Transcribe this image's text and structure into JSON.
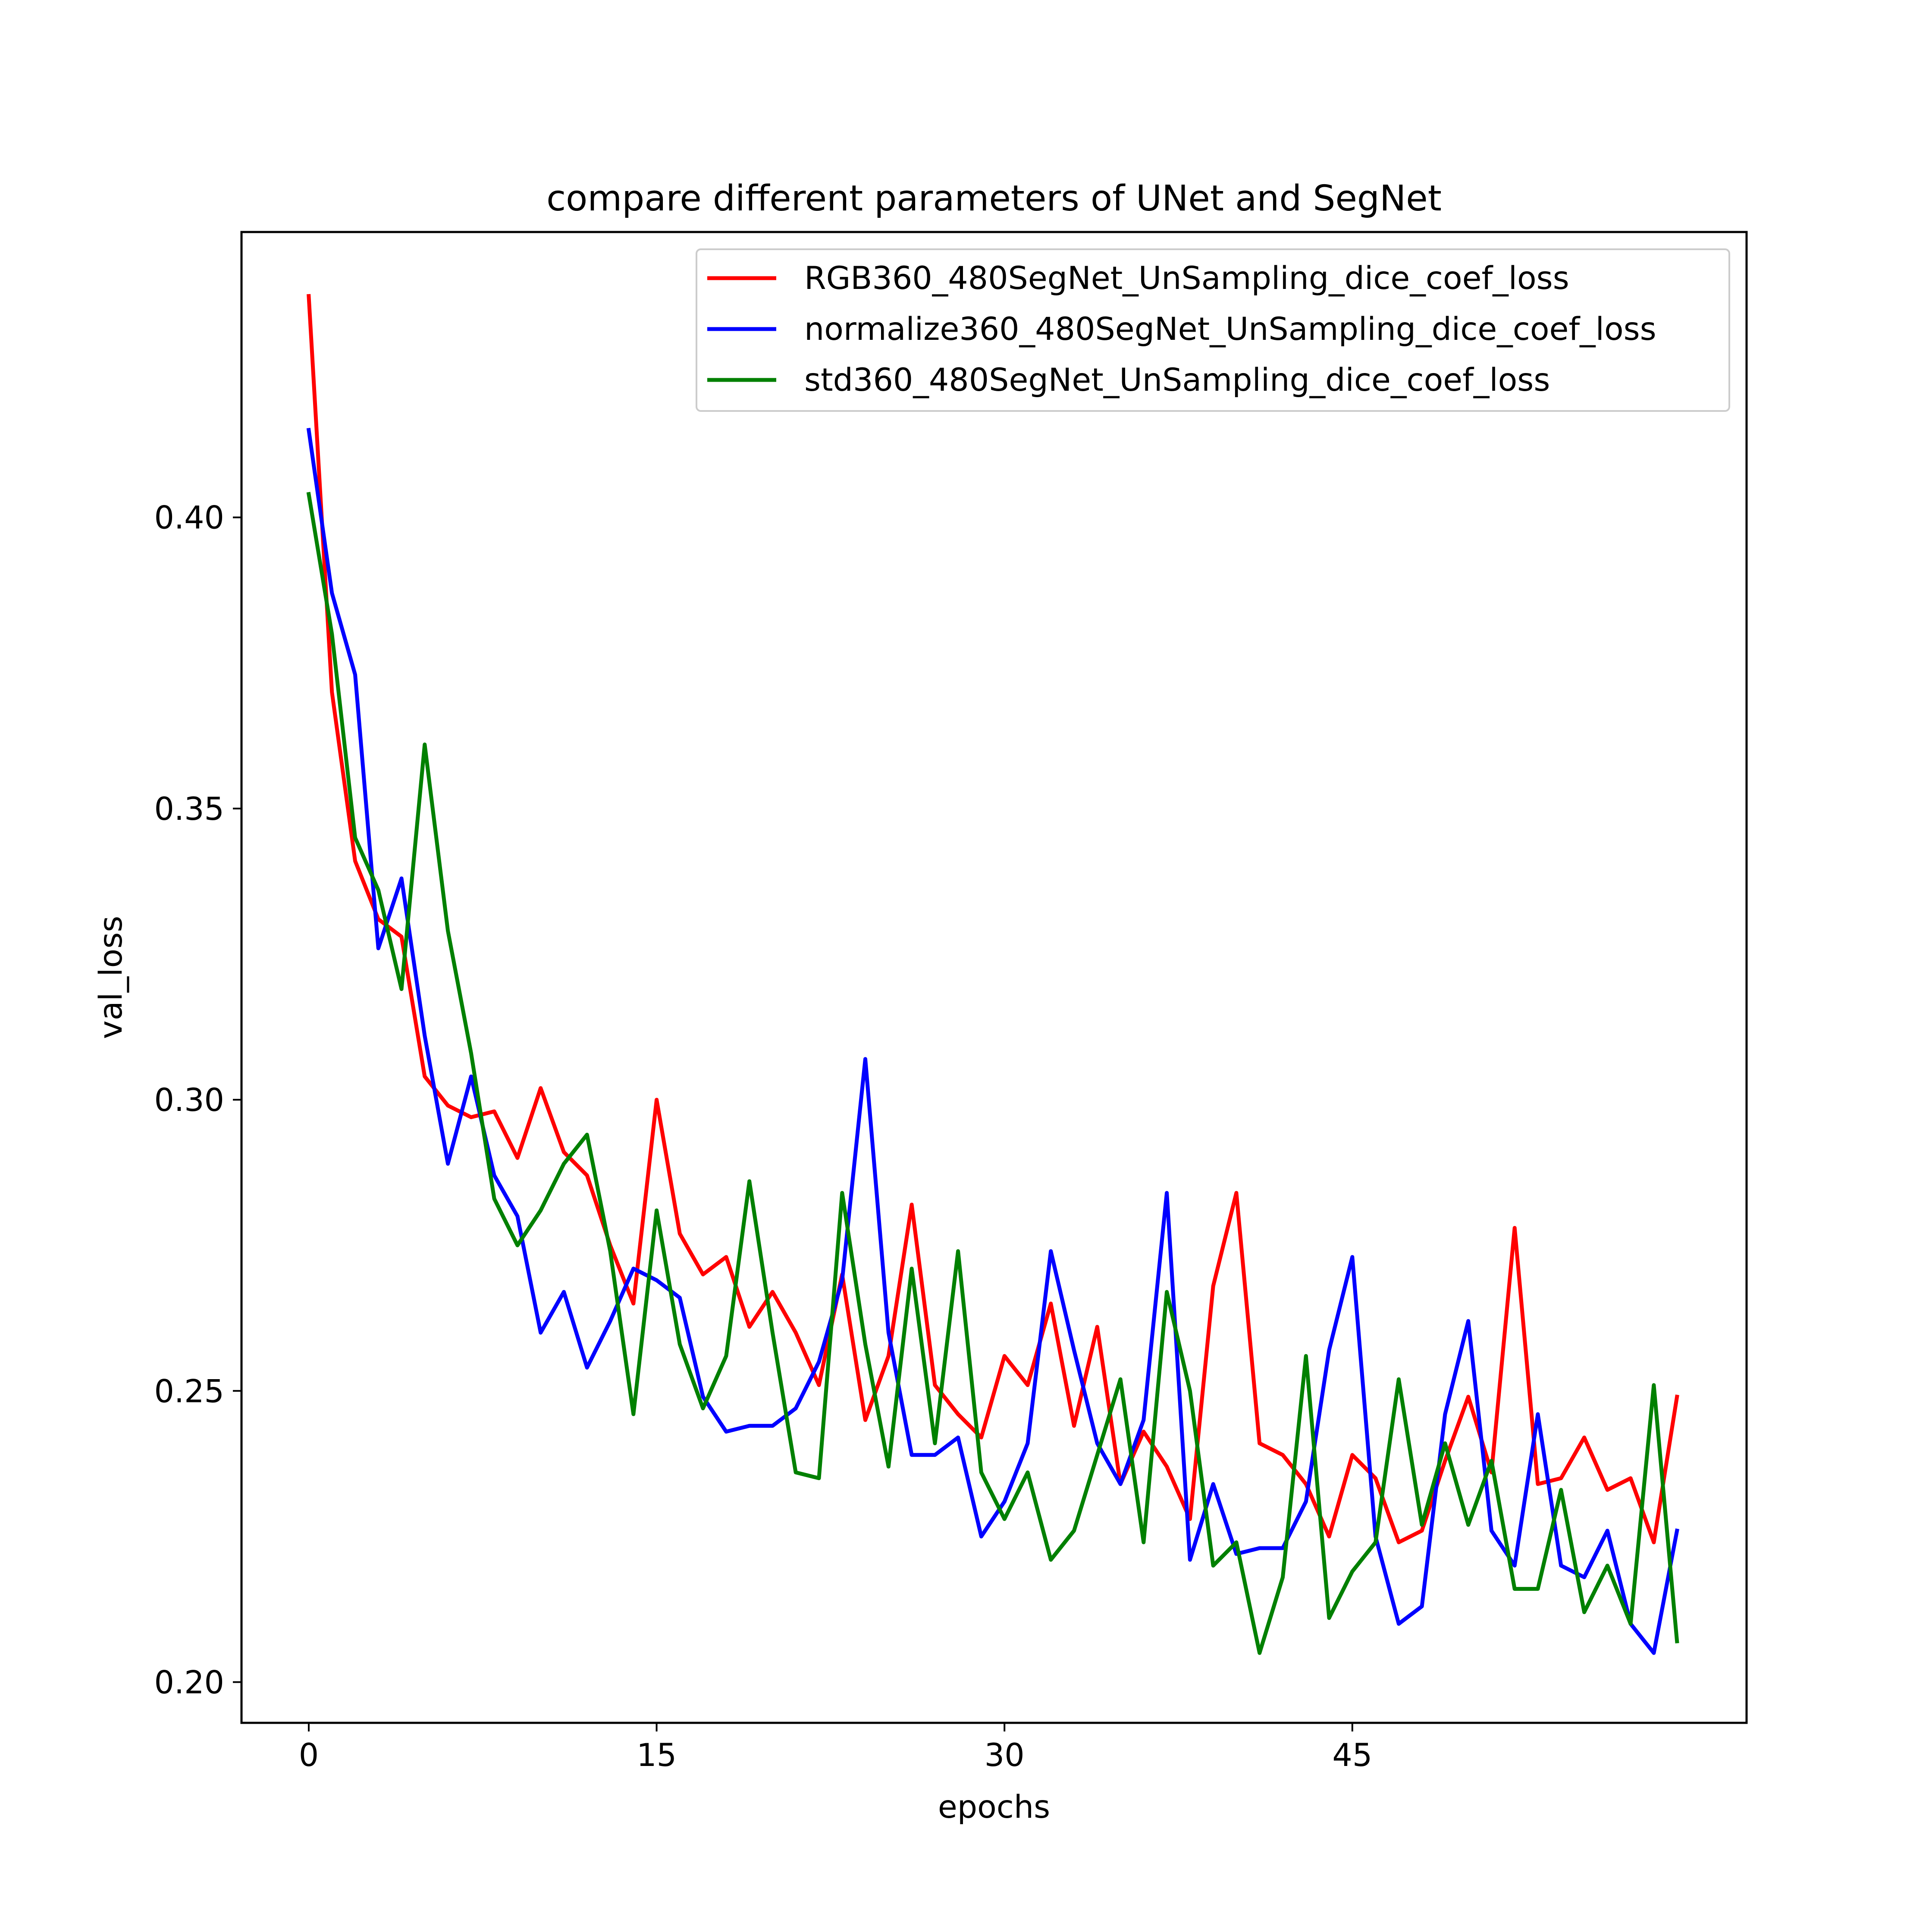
{
  "chart_data": {
    "type": "line",
    "title": "compare different parameters of UNet and SegNet",
    "xlabel": "epochs",
    "ylabel": "val_loss",
    "xlim": [
      -2.9,
      62
    ],
    "ylim": [
      0.193,
      0.449
    ],
    "xticks": [
      0,
      15,
      30,
      45
    ],
    "xtick_labels": [
      "0",
      "15",
      "30",
      "45"
    ],
    "yticks": [
      0.2,
      0.25,
      0.3,
      0.35,
      0.4
    ],
    "ytick_labels": [
      "0.20",
      "0.25",
      "0.30",
      "0.35",
      "0.40"
    ],
    "grid": false,
    "legend_position": "top-right",
    "x": [
      0,
      1,
      2,
      3,
      4,
      5,
      6,
      7,
      8,
      9,
      10,
      11,
      12,
      13,
      14,
      15,
      16,
      17,
      18,
      19,
      20,
      21,
      22,
      23,
      24,
      25,
      26,
      27,
      28,
      29,
      30,
      31,
      32,
      33,
      34,
      35,
      36,
      37,
      38,
      39,
      40,
      41,
      42,
      43,
      44,
      45,
      46,
      47,
      48,
      49,
      50,
      51,
      52,
      53,
      54,
      55,
      56,
      57,
      58,
      59
    ],
    "series": [
      {
        "name": "RGB360_480SegNet_UnSampling_dice_coef_loss",
        "color": "#ff0000",
        "values": [
          0.438,
          0.37,
          0.341,
          0.331,
          0.328,
          0.304,
          0.299,
          0.297,
          0.298,
          0.29,
          0.302,
          0.291,
          0.287,
          0.275,
          0.265,
          0.3,
          0.277,
          0.27,
          0.273,
          0.261,
          0.267,
          0.26,
          0.251,
          0.27,
          0.245,
          0.256,
          0.282,
          0.251,
          0.246,
          0.242,
          0.256,
          0.251,
          0.265,
          0.244,
          0.261,
          0.234,
          0.243,
          0.237,
          0.228,
          0.268,
          0.284,
          0.241,
          0.239,
          0.234,
          0.225,
          0.239,
          0.235,
          0.224,
          0.226,
          0.238,
          0.249,
          0.236,
          0.278,
          0.234,
          0.235,
          0.242,
          0.233,
          0.235,
          0.224,
          0.249
        ]
      },
      {
        "name": "normalize360_480SegNet_UnSampling_dice_coef_loss",
        "color": "#0000ff",
        "values": [
          0.415,
          0.387,
          0.373,
          0.326,
          0.338,
          0.311,
          0.289,
          0.304,
          0.287,
          0.28,
          0.26,
          0.267,
          0.254,
          0.262,
          0.271,
          0.269,
          0.266,
          0.249,
          0.243,
          0.244,
          0.244,
          0.247,
          0.255,
          0.269,
          0.307,
          0.26,
          0.239,
          0.239,
          0.242,
          0.225,
          0.231,
          0.241,
          0.274,
          0.257,
          0.241,
          0.234,
          0.245,
          0.284,
          0.221,
          0.234,
          0.222,
          0.223,
          0.223,
          0.231,
          0.257,
          0.273,
          0.225,
          0.21,
          0.213,
          0.246,
          0.262,
          0.226,
          0.22,
          0.246,
          0.22,
          0.218,
          0.226,
          0.21,
          0.205,
          0.226
        ]
      },
      {
        "name": "std360_480SegNet_UnSampling_dice_coef_loss",
        "color": "#008000",
        "values": [
          0.404,
          0.38,
          0.345,
          0.336,
          0.319,
          0.361,
          0.329,
          0.308,
          0.283,
          0.275,
          0.281,
          0.289,
          0.294,
          0.274,
          0.246,
          0.281,
          0.258,
          0.247,
          0.256,
          0.286,
          0.26,
          0.236,
          0.235,
          0.284,
          0.258,
          0.237,
          0.271,
          0.241,
          0.274,
          0.236,
          0.228,
          0.236,
          0.221,
          0.226,
          0.239,
          0.252,
          0.224,
          0.267,
          0.25,
          0.22,
          0.224,
          0.205,
          0.218,
          0.256,
          0.211,
          0.219,
          0.224,
          0.252,
          0.227,
          0.241,
          0.227,
          0.238,
          0.216,
          0.216,
          0.233,
          0.212,
          0.22,
          0.21,
          0.251,
          0.207
        ]
      }
    ]
  }
}
